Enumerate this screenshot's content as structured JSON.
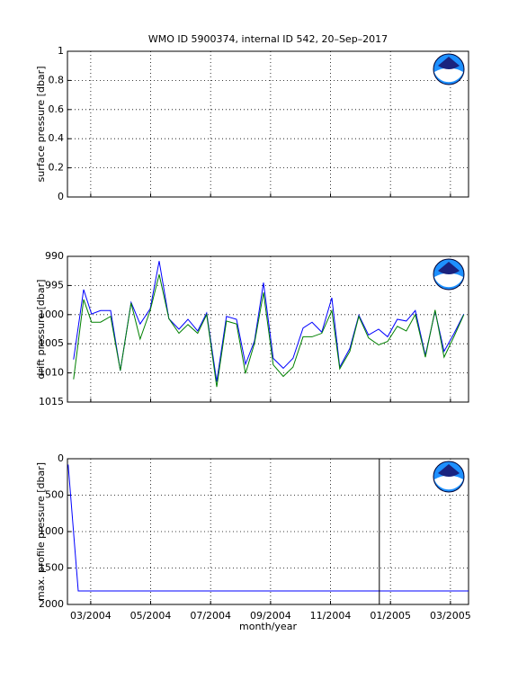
{
  "chart_data": [
    {
      "type": "line",
      "title": "WMO ID 5900374, internal ID 542, 20–Sep–2017",
      "ylabel": "surface pressure [dbar]",
      "xlim": [
        2004.102,
        2005.217
      ],
      "xticks": [
        2004.1667,
        2004.3333,
        2004.5,
        2004.6667,
        2004.8333,
        2005.0,
        2005.1667
      ],
      "ylim": [
        0,
        1
      ],
      "yticks": [
        0,
        0.2,
        0.4,
        0.6,
        0.8,
        1
      ],
      "grid": true,
      "series": []
    },
    {
      "type": "line",
      "ylabel": "drift pressure [dbar]",
      "y_reverse": true,
      "xlim": [
        2004.102,
        2005.217
      ],
      "xticks": [
        2004.1667,
        2004.3333,
        2004.5,
        2004.6667,
        2004.8333,
        2005.0,
        2005.1667
      ],
      "ylim": [
        990,
        1015
      ],
      "yticks": [
        990,
        995,
        1000,
        1005,
        1010,
        1015
      ],
      "grid": true,
      "x": [
        2004.119,
        2004.147,
        2004.169,
        2004.194,
        2004.222,
        2004.249,
        2004.279,
        2004.304,
        2004.332,
        2004.357,
        2004.384,
        2004.412,
        2004.437,
        2004.464,
        2004.489,
        2004.517,
        2004.544,
        2004.572,
        2004.597,
        2004.622,
        2004.647,
        2004.674,
        2004.702,
        2004.729,
        2004.757,
        2004.782,
        2004.809,
        2004.837,
        2004.859,
        2004.887,
        2004.912,
        2004.939,
        2004.967,
        2004.992,
        2005.019,
        2005.044,
        2005.069,
        2005.097,
        2005.124,
        2005.149,
        2005.177,
        2005.204
      ],
      "series": [
        {
          "color": "#0000ff",
          "values": [
            1007.7,
            995.7,
            999.9,
            999.3,
            999.3,
            1009.6,
            997.9,
            1001.6,
            999,
            990.8,
            1000.7,
            1002.5,
            1000.8,
            1002.8,
            999.7,
            1011.5,
            1000.3,
            1000.8,
            1008.5,
            1004.5,
            994.5,
            1007.5,
            1009.2,
            1007.5,
            1002.3,
            1001.3,
            1003,
            997.1,
            1009,
            1005.8,
            1000.1,
            1003.5,
            1002.5,
            1003.8,
            1000.8,
            1001.1,
            999.3,
            1007,
            999.4,
            1006.3,
            1003.2,
            999.9
          ]
        },
        {
          "color": "#008000",
          "values": [
            1011.1,
            997.4,
            1001.3,
            1001.3,
            1000.3,
            1009.6,
            998,
            1004.2,
            999.3,
            993.1,
            1000.7,
            1003.2,
            1001.7,
            1003.2,
            1000,
            1012.4,
            1001.1,
            1001.6,
            1010.1,
            1004.9,
            996.2,
            1008.6,
            1010.6,
            1009,
            1003.8,
            1003.8,
            1003.2,
            999.3,
            1009.3,
            1006.3,
            1000.3,
            1004,
            1005.2,
            1004.6,
            1002,
            1002.8,
            1000,
            1007.3,
            999.2,
            1007.3,
            1003.7,
            1000
          ]
        }
      ]
    },
    {
      "type": "line",
      "ylabel": "max. profile pressure [dbar]",
      "xlabel": "month/year",
      "y_reverse": true,
      "xlim": [
        2004.102,
        2005.217
      ],
      "xticks": [
        {
          "value": 2004.1667,
          "label": "03/2004"
        },
        {
          "value": 2004.3333,
          "label": "05/2004"
        },
        {
          "value": 2004.5,
          "label": "07/2004"
        },
        {
          "value": 2004.6667,
          "label": "09/2004"
        },
        {
          "value": 2004.8333,
          "label": "11/2004"
        },
        {
          "value": 2005.0,
          "label": "01/2005"
        },
        {
          "value": 2005.1667,
          "label": "03/2005"
        }
      ],
      "ylim": [
        0,
        2000
      ],
      "yticks": [
        0,
        500,
        1000,
        1500,
        2000
      ],
      "grid": true,
      "x": [
        2004.104,
        2004.132,
        2005.217
      ],
      "series": [
        {
          "color": "#0000ff",
          "values": [
            80,
            1815,
            1815
          ]
        }
      ],
      "vline": {
        "x": 2004.969,
        "color": "#000000"
      }
    }
  ]
}
